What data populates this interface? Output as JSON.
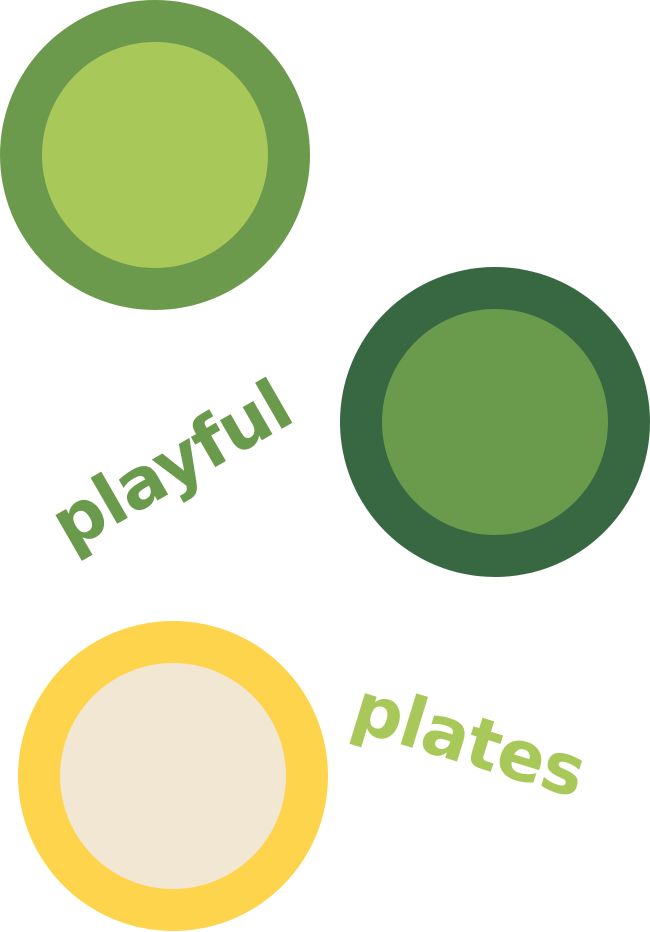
{
  "words": {
    "first": "playful",
    "second": "plates"
  },
  "colors": {
    "plate1_outer": "#6b9a4c",
    "plate1_inner": "#a8c95a",
    "plate2_outer": "#376842",
    "plate2_inner": "#6a9a4c",
    "plate3_outer": "#fdd44c",
    "plate3_inner": "#f1e7d2",
    "word_first": "#6a9a4c",
    "word_second": "#a8c95a"
  }
}
